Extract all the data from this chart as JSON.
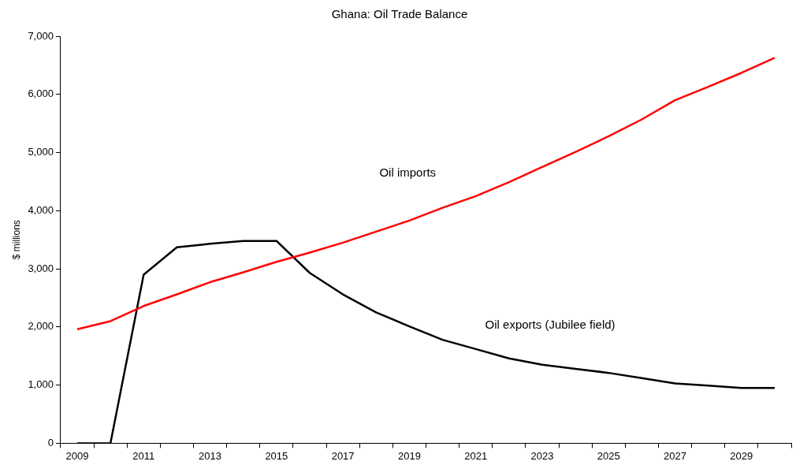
{
  "chart_data": {
    "type": "line",
    "title": "Ghana: Oil Trade Balance",
    "ylabel": "$ millions",
    "categories": [
      "2009",
      null,
      "2011",
      null,
      "2013",
      null,
      "2015",
      null,
      "2017",
      null,
      "2019",
      null,
      "2021",
      null,
      "2023",
      null,
      "2025",
      null,
      "2027",
      null,
      "2029",
      null
    ],
    "series": [
      {
        "name": "Oil imports",
        "color": "#ff0000",
        "values": [
          1960,
          2100,
          2360,
          2560,
          2770,
          2940,
          3120,
          3280,
          3450,
          3640,
          3830,
          4050,
          4250,
          4490,
          4750,
          5010,
          5280,
          5570,
          5900,
          6130,
          6370,
          6630
        ]
      },
      {
        "name": "Oil exports (Jubilee field)",
        "color": "#000000",
        "values": [
          0,
          0,
          2900,
          3370,
          3430,
          3480,
          3480,
          2930,
          2560,
          2250,
          2010,
          1780,
          1620,
          1460,
          1350,
          1280,
          1210,
          1120,
          1030,
          990,
          950,
          950
        ]
      }
    ],
    "ylim": [
      0,
      7000
    ],
    "yticks": [
      {
        "value": 0,
        "label": "0"
      },
      {
        "value": 1000,
        "label": "1,000"
      },
      {
        "value": 2000,
        "label": "2,000"
      },
      {
        "value": 3000,
        "label": "3,000"
      },
      {
        "value": 4000,
        "label": "4,000"
      },
      {
        "value": 5000,
        "label": "5,000"
      },
      {
        "value": 6000,
        "label": "6,000"
      },
      {
        "value": 7000,
        "label": "7,000"
      }
    ],
    "grid": false,
    "legend": false,
    "marker": "none",
    "line_style": "solid"
  }
}
